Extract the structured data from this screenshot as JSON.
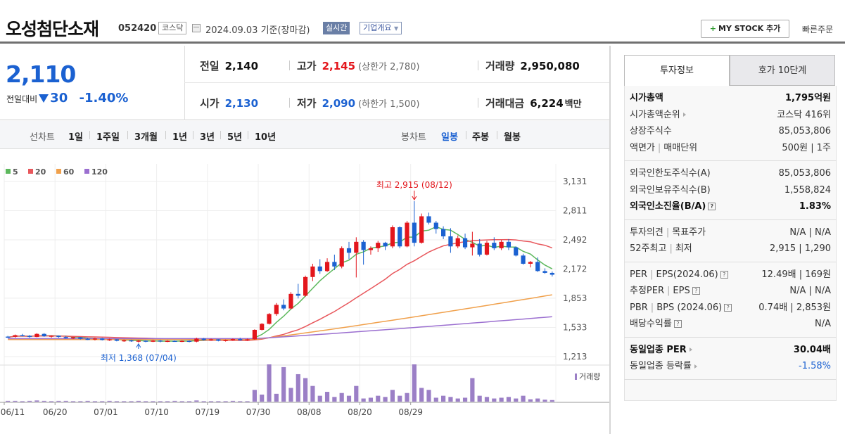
{
  "header": {
    "stock_name": "오성첨단소재",
    "stock_code": "052420",
    "market": "코스닥",
    "date": "2024.09.03 기준(장마감)",
    "realtime_label": "실시간",
    "company_label": "기업개요",
    "mystock_label": "MY STOCK 추가",
    "quick_order_label": "빠른주문"
  },
  "summary": {
    "current_price": "2,110",
    "diff_label": "전일대비",
    "diff_value": "30",
    "diff_percent": "-1.40%",
    "prev_label": "전일",
    "prev_value": "2,140",
    "high_label": "고가",
    "high_value": "2,145",
    "high_sub": "(상한가 2,780)",
    "volume_label": "거래량",
    "volume_value": "2,950,080",
    "open_label": "시가",
    "open_value": "2,130",
    "low_label": "저가",
    "low_value": "2,090",
    "low_sub": "(하한가 1,500)",
    "amount_label": "거래대금",
    "amount_value": "6,224",
    "amount_unit": "백만"
  },
  "period_bar": {
    "line_label": "선차트",
    "line_options": [
      "1일",
      "1주일",
      "3개월",
      "1년",
      "3년",
      "5년",
      "10년"
    ],
    "candle_label": "봉차트",
    "candle_options": [
      "일봉",
      "주봉",
      "월봉"
    ],
    "active_candle": "일봉"
  },
  "chart_data": {
    "type": "candlestick",
    "legend": [
      {
        "name": "5",
        "color": "#5cb85c"
      },
      {
        "name": "20",
        "color": "#e8575c"
      },
      {
        "name": "60",
        "color": "#f0a04b"
      },
      {
        "name": "120",
        "color": "#9b6fd0"
      }
    ],
    "y_ticks": [
      3131,
      2811,
      2492,
      2172,
      1853,
      1533,
      1213
    ],
    "ylim": [
      1213,
      3131
    ],
    "x_labels": [
      "06/11",
      "06/20",
      "07/01",
      "07/10",
      "07/19",
      "07/30",
      "08/08",
      "08/20",
      "08/29"
    ],
    "high_annotation": "최고 2,915 (08/12)",
    "low_annotation": "최저 1,368 (07/04)",
    "volume_label": "거래량",
    "up_color": "#e3161c",
    "down_color": "#1b61d1",
    "candles": [
      [
        1432,
        1440,
        1418,
        1425
      ],
      [
        1430,
        1455,
        1420,
        1448
      ],
      [
        1448,
        1462,
        1435,
        1440
      ],
      [
        1440,
        1450,
        1420,
        1428
      ],
      [
        1428,
        1470,
        1425,
        1462
      ],
      [
        1462,
        1470,
        1430,
        1436
      ],
      [
        1436,
        1448,
        1420,
        1442
      ],
      [
        1442,
        1445,
        1420,
        1428
      ],
      [
        1428,
        1440,
        1410,
        1416
      ],
      [
        1416,
        1430,
        1405,
        1425
      ],
      [
        1425,
        1428,
        1400,
        1408
      ],
      [
        1408,
        1420,
        1395,
        1400
      ],
      [
        1400,
        1420,
        1390,
        1412
      ],
      [
        1412,
        1418,
        1390,
        1395
      ],
      [
        1395,
        1410,
        1385,
        1402
      ],
      [
        1402,
        1405,
        1380,
        1386
      ],
      [
        1386,
        1400,
        1375,
        1392
      ],
      [
        1392,
        1398,
        1375,
        1380
      ],
      [
        1380,
        1395,
        1368,
        1388
      ],
      [
        1388,
        1392,
        1370,
        1376
      ],
      [
        1376,
        1395,
        1372,
        1390
      ],
      [
        1390,
        1395,
        1370,
        1378
      ],
      [
        1378,
        1392,
        1372,
        1386
      ],
      [
        1386,
        1390,
        1375,
        1380
      ],
      [
        1380,
        1392,
        1372,
        1386
      ],
      [
        1386,
        1390,
        1370,
        1377
      ],
      [
        1377,
        1420,
        1370,
        1410
      ],
      [
        1410,
        1418,
        1390,
        1396
      ],
      [
        1396,
        1410,
        1385,
        1402
      ],
      [
        1402,
        1405,
        1380,
        1386
      ],
      [
        1386,
        1400,
        1378,
        1394
      ],
      [
        1394,
        1412,
        1385,
        1405
      ],
      [
        1405,
        1420,
        1388,
        1392
      ],
      [
        1392,
        1410,
        1385,
        1402
      ],
      [
        1402,
        1512,
        1398,
        1506
      ],
      [
        1506,
        1580,
        1500,
        1572
      ],
      [
        1572,
        1690,
        1565,
        1680
      ],
      [
        1680,
        1800,
        1660,
        1780
      ],
      [
        1780,
        1840,
        1720,
        1740
      ],
      [
        1740,
        1920,
        1730,
        1900
      ],
      [
        1900,
        2010,
        1850,
        1880
      ],
      [
        1880,
        2100,
        1870,
        2085
      ],
      [
        2085,
        2230,
        2040,
        2200
      ],
      [
        2200,
        2280,
        2120,
        2150
      ],
      [
        2150,
        2290,
        2140,
        2250
      ],
      [
        2250,
        2330,
        2160,
        2200
      ],
      [
        2200,
        2420,
        2180,
        2400
      ],
      [
        2400,
        2470,
        2280,
        2350
      ],
      [
        2350,
        2520,
        2080,
        2470
      ],
      [
        2470,
        2490,
        2220,
        2380
      ],
      [
        2380,
        2420,
        2330,
        2400
      ],
      [
        2400,
        2480,
        2360,
        2460
      ],
      [
        2460,
        2470,
        2380,
        2420
      ],
      [
        2420,
        2650,
        2400,
        2630
      ],
      [
        2630,
        2640,
        2400,
        2420
      ],
      [
        2420,
        2700,
        2410,
        2680
      ],
      [
        2680,
        2915,
        2420,
        2460
      ],
      [
        2460,
        2780,
        2450,
        2750
      ],
      [
        2750,
        2790,
        2660,
        2680
      ],
      [
        2680,
        2700,
        2560,
        2610
      ],
      [
        2610,
        2640,
        2500,
        2530
      ],
      [
        2530,
        2620,
        2350,
        2420
      ],
      [
        2420,
        2540,
        2400,
        2510
      ],
      [
        2510,
        2560,
        2390,
        2410
      ],
      [
        2410,
        2580,
        2320,
        2450
      ],
      [
        2450,
        2500,
        2310,
        2330
      ],
      [
        2330,
        2480,
        2320,
        2460
      ],
      [
        2460,
        2520,
        2380,
        2400
      ],
      [
        2400,
        2490,
        2380,
        2470
      ],
      [
        2470,
        2500,
        2380,
        2410
      ],
      [
        2410,
        2420,
        2310,
        2320
      ],
      [
        2320,
        2340,
        2220,
        2230
      ],
      [
        2230,
        2260,
        2190,
        2250
      ],
      [
        2250,
        2300,
        2140,
        2150
      ],
      [
        2150,
        2180,
        2120,
        2130
      ],
      [
        2130,
        2145,
        2090,
        2110
      ]
    ],
    "volumes": [
      2,
      2,
      1,
      2,
      3,
      2,
      1,
      2,
      2,
      1,
      1,
      2,
      1,
      1,
      2,
      1,
      1,
      1,
      2,
      1,
      1,
      1,
      1,
      2,
      1,
      1,
      3,
      1,
      1,
      1,
      1,
      2,
      1,
      1,
      30,
      18,
      95,
      20,
      88,
      35,
      70,
      60,
      40,
      15,
      25,
      12,
      22,
      15,
      40,
      8,
      10,
      15,
      12,
      30,
      15,
      22,
      95,
      35,
      30,
      10,
      15,
      12,
      8,
      10,
      60,
      15,
      12,
      8,
      10,
      12,
      8,
      15,
      6,
      8,
      5,
      4
    ]
  },
  "right_panel": {
    "tab1": "투자정보",
    "tab2": "호가 10단계",
    "block1": [
      {
        "l": "시가총액",
        "r": "1,795억원",
        "bold": true
      },
      {
        "l": "시가총액순위",
        "r": "코스닥 416위",
        "arrow": true
      },
      {
        "l": "상장주식수",
        "r": "85,053,806"
      },
      {
        "l": "액면가|매매단위",
        "r": "500원 | 1주"
      }
    ],
    "block2": [
      {
        "l": "외국인한도주식수(A)",
        "r": "85,053,806"
      },
      {
        "l": "외국인보유주식수(B)",
        "r": "1,558,824"
      },
      {
        "l": "외국인소진율(B/A)",
        "r": "1.83%",
        "bold": true,
        "q": true
      }
    ],
    "block3": [
      {
        "l": "투자의견|목표주가",
        "r": "N/A | N/A"
      },
      {
        "l": "52주최고|최저",
        "r": "2,915 | 1,290"
      }
    ],
    "block4": [
      {
        "l": "PER|EPS(2024.06)",
        "r": "12.49배 | 169원",
        "q": true
      },
      {
        "l": "추정PER|EPS",
        "r": "N/A | N/A",
        "q": true
      },
      {
        "l": "PBR|BPS (2024.06)",
        "r": "0.74배 | 2,853원",
        "q": true
      },
      {
        "l": "배당수익률",
        "r": "N/A",
        "q": true
      }
    ],
    "block5": [
      {
        "l": "동일업종 PER",
        "r": "30.04배",
        "bold": true,
        "arrow": true
      },
      {
        "l": "동일업종 등락률",
        "r": "-1.58%",
        "arrow": true,
        "blue": true
      }
    ]
  }
}
